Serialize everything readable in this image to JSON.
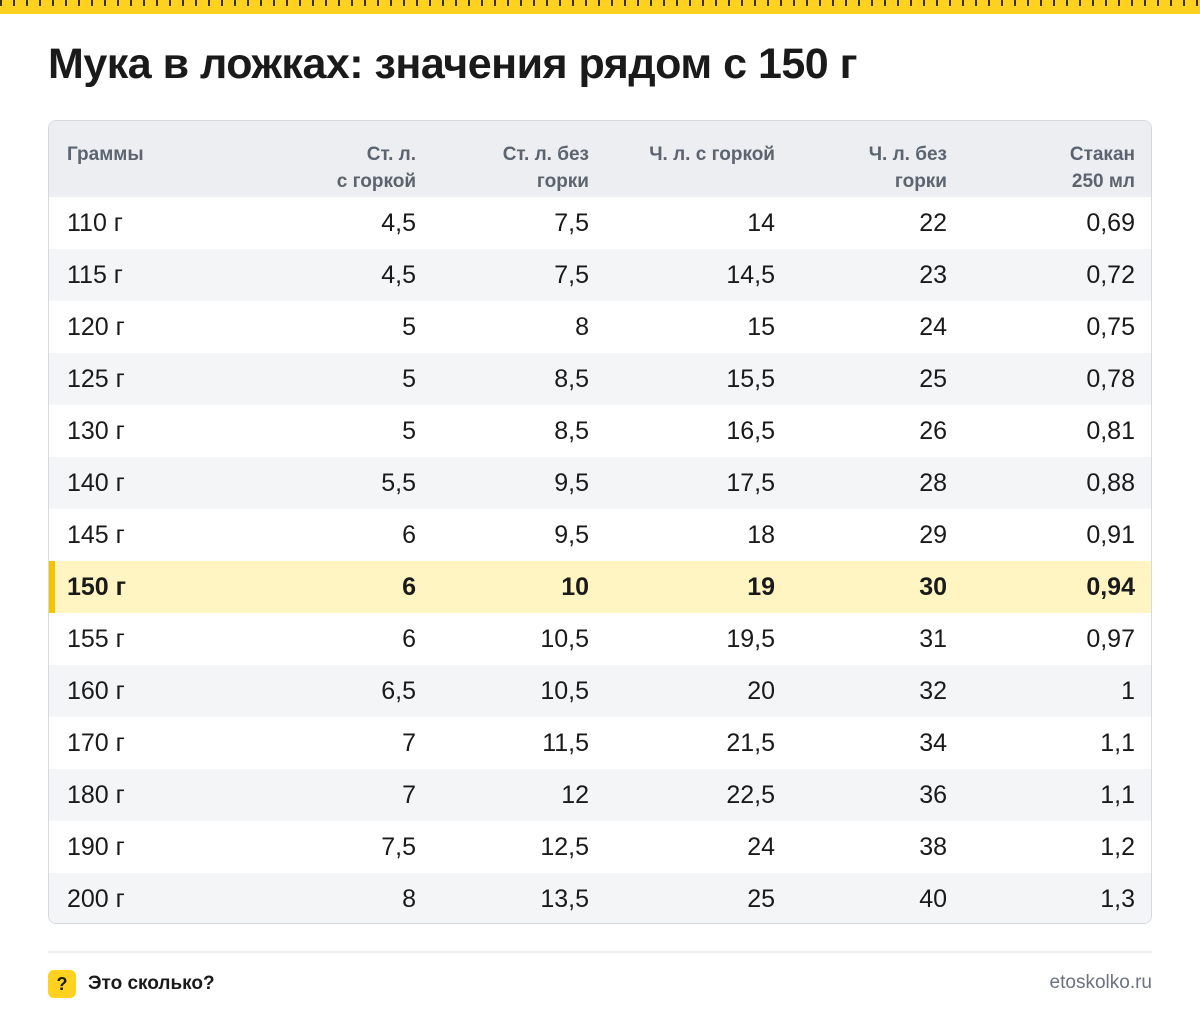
{
  "title": "Мука в ложках: значения рядом с 150 г",
  "table": {
    "headers": [
      "Граммы",
      "Ст. л.\nс горкой",
      "Ст. л. без\nгорки",
      "Ч. л. с горкой",
      "Ч. л. без\nгорки",
      "Стакан\n250 мл"
    ],
    "rows": [
      [
        "110 г",
        "4,5",
        "7,5",
        "14",
        "22",
        "0,69"
      ],
      [
        "115 г",
        "4,5",
        "7,5",
        "14,5",
        "23",
        "0,72"
      ],
      [
        "120 г",
        "5",
        "8",
        "15",
        "24",
        "0,75"
      ],
      [
        "125 г",
        "5",
        "8,5",
        "15,5",
        "25",
        "0,78"
      ],
      [
        "130 г",
        "5",
        "8,5",
        "16,5",
        "26",
        "0,81"
      ],
      [
        "140 г",
        "5,5",
        "9,5",
        "17,5",
        "28",
        "0,88"
      ],
      [
        "145 г",
        "6",
        "9,5",
        "18",
        "29",
        "0,91"
      ],
      [
        "150 г",
        "6",
        "10",
        "19",
        "30",
        "0,94"
      ],
      [
        "155 г",
        "6",
        "10,5",
        "19,5",
        "31",
        "0,97"
      ],
      [
        "160 г",
        "6,5",
        "10,5",
        "20",
        "32",
        "1"
      ],
      [
        "170 г",
        "7",
        "11,5",
        "21,5",
        "34",
        "1,1"
      ],
      [
        "180 г",
        "7",
        "12",
        "22,5",
        "36",
        "1,1"
      ],
      [
        "190 г",
        "7,5",
        "12,5",
        "24",
        "38",
        "1,2"
      ],
      [
        "200 г",
        "8",
        "13,5",
        "25",
        "40",
        "1,3"
      ]
    ],
    "highlight_row": 7
  },
  "footer": {
    "icon": "question-icon",
    "icon_glyph": "?",
    "brand": "Это сколько?",
    "site": "etoskolko.ru"
  },
  "colors": {
    "accent": "#ffd21f",
    "highlight_bg": "#fff5c2",
    "highlight_bar": "#f5c400"
  }
}
